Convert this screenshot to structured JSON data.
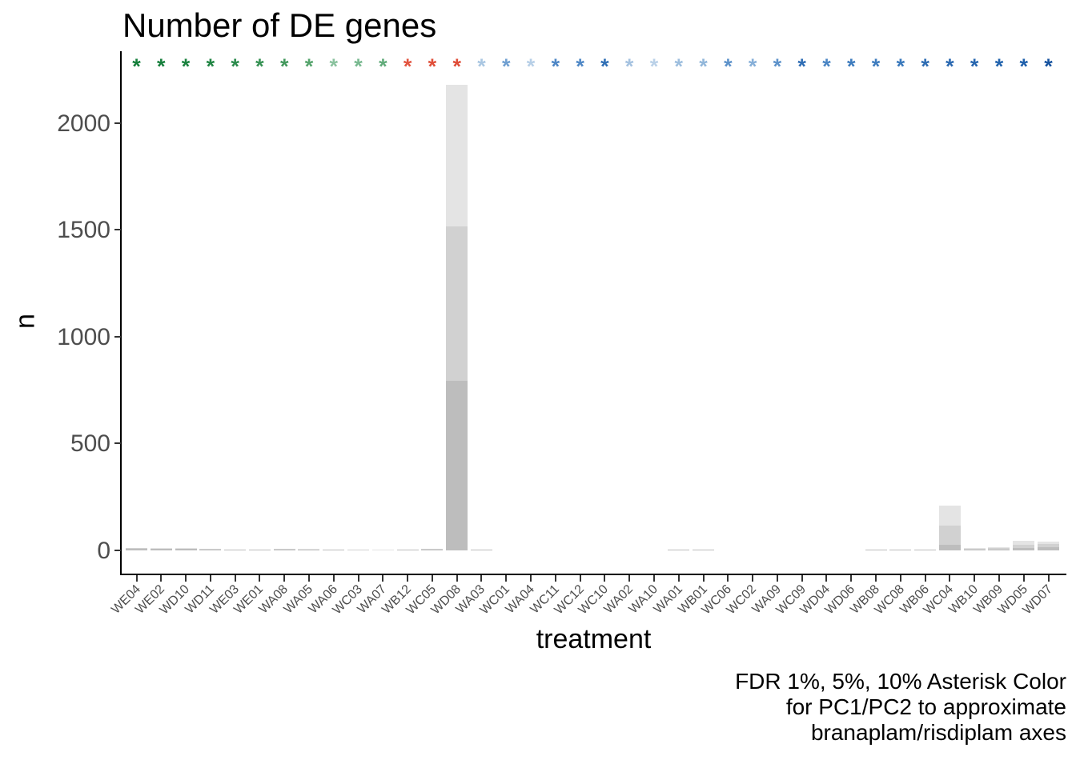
{
  "title": "Number of DE genes",
  "axes": {
    "x_title": "treatment",
    "y_title": "n"
  },
  "caption": {
    "line1": "FDR 1%, 5%, 10% Asterisk Color",
    "line2": "for PC1/PC2 to approximate",
    "line3": "branaplam/risdiplam axes"
  },
  "colors": {
    "axis_line": "#000000",
    "axis_text": "#4d4d4d",
    "fdr1_bar": "#bdbdbd",
    "fdr5_bar": "#d1d1d1",
    "fdr10_bar": "#e4e4e4"
  },
  "chart_data": {
    "type": "bar",
    "stacked": true,
    "title": "Number of DE genes",
    "xlabel": "treatment",
    "ylabel": "n",
    "ylim": [
      0,
      2270
    ],
    "y_ticks": [
      0,
      500,
      1000,
      1500,
      2000
    ],
    "grid": false,
    "legend": "none",
    "categories": [
      "WE04",
      "WE02",
      "WD10",
      "WD11",
      "WE03",
      "WE01",
      "WA08",
      "WA05",
      "WA06",
      "WC03",
      "WA07",
      "WB12",
      "WC05",
      "WD08",
      "WA03",
      "WC01",
      "WA04",
      "WC11",
      "WC12",
      "WC10",
      "WA02",
      "WA10",
      "WA01",
      "WB01",
      "WC06",
      "WC02",
      "WA09",
      "WC09",
      "WD04",
      "WD06",
      "WB08",
      "WC08",
      "WB06",
      "WC04",
      "WB10",
      "WB09",
      "WD05",
      "WD07"
    ],
    "series": [
      {
        "name": "FDR 1%",
        "cumulative": true,
        "values": [
          8,
          6,
          6,
          5,
          1,
          3,
          5,
          4,
          1,
          0,
          0,
          1,
          4,
          795,
          1,
          0,
          0,
          0,
          0,
          0,
          0,
          0,
          2,
          2,
          0,
          0,
          0,
          0,
          0,
          0,
          2,
          1,
          1,
          25,
          3,
          5,
          10,
          14
        ]
      },
      {
        "name": "FDR 5%",
        "cumulative": true,
        "values": [
          10,
          8,
          8,
          7,
          2,
          4,
          7,
          5,
          2,
          1,
          0,
          2,
          6,
          1515,
          2,
          0,
          0,
          0,
          0,
          0,
          0,
          0,
          4,
          4,
          0,
          0,
          0,
          0,
          0,
          0,
          3,
          2,
          2,
          115,
          6,
          10,
          25,
          30
        ]
      },
      {
        "name": "FDR 10%",
        "cumulative": true,
        "values": [
          12,
          10,
          10,
          8,
          3,
          5,
          8,
          6,
          3,
          2,
          1,
          3,
          8,
          2180,
          3,
          0,
          0,
          0,
          0,
          0,
          0,
          0,
          5,
          5,
          0,
          0,
          0,
          0,
          0,
          0,
          5,
          4,
          4,
          210,
          10,
          14,
          45,
          42
        ]
      }
    ],
    "asterisks": {
      "symbol": "*",
      "colors": [
        "#157f3b",
        "#17803d",
        "#1b823f",
        "#218544",
        "#2b8b4c",
        "#379254",
        "#42985c",
        "#55a46c",
        "#8ac29e",
        "#79b990",
        "#61ab7a",
        "#e25440",
        "#e04e39",
        "#df4c37",
        "#aac7e2",
        "#6f9fd1",
        "#b7cfe7",
        "#4e87c6",
        "#4f88c6",
        "#2f6fb5",
        "#a5c2e0",
        "#bad1e8",
        "#9dbede",
        "#92b7da",
        "#5d92ca",
        "#86afd8",
        "#5d92ca",
        "#2e6db4",
        "#4a85c4",
        "#3e7cbe",
        "#3e7cbe",
        "#3a79bc",
        "#2e6cb3",
        "#2b69b1",
        "#2766af",
        "#2263ad",
        "#1e5fab",
        "#17539f"
      ]
    }
  }
}
